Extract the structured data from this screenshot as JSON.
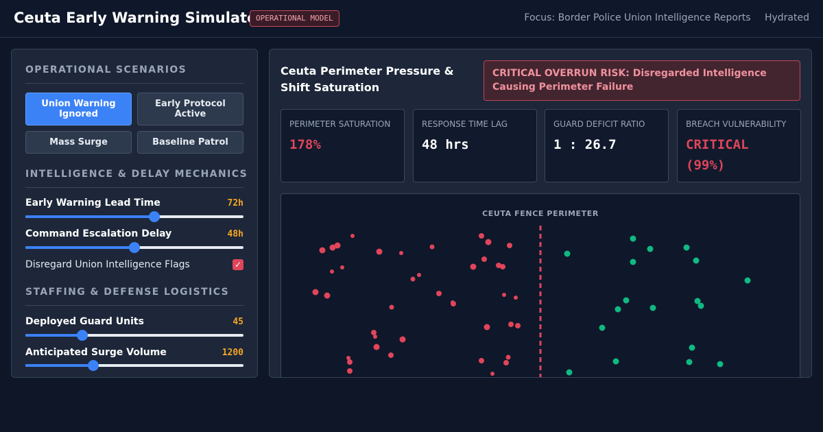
{
  "header": {
    "title": "Ceuta Early Warning Simulator",
    "badge": "OPERATIONAL MODEL",
    "focus": "Focus: Border Police Union Intelligence Reports",
    "status": "Hydrated"
  },
  "scenarios": {
    "title": "OPERATIONAL SCENARIOS",
    "buttons": [
      {
        "label": "Union Warning Ignored",
        "active": true
      },
      {
        "label": "Early Protocol Active",
        "active": false
      },
      {
        "label": "Mass Surge",
        "active": false
      },
      {
        "label": "Baseline Patrol",
        "active": false
      }
    ]
  },
  "intel": {
    "title": "INTELLIGENCE & DELAY MECHANICS",
    "lead_time": {
      "label": "Early Warning Lead Time",
      "value": "72h",
      "fraction": 0.59
    },
    "escalation": {
      "label": "Command Escalation Delay",
      "value": "48h",
      "fraction": 0.5
    },
    "disregard": {
      "label": "Disregard Union Intelligence Flags",
      "checked": true
    }
  },
  "staffing": {
    "title": "STAFFING & DEFENSE LOGISTICS",
    "guards": {
      "label": "Deployed Guard Units",
      "value": "45",
      "fraction": 0.26
    },
    "surge": {
      "label": "Anticipated Surge Volume",
      "value": "1200",
      "fraction": 0.31
    }
  },
  "main": {
    "title": "Ceuta Perimeter Pressure & Shift Saturation",
    "alert": "CRITICAL OVERRUN RISK: Disregarded Intelligence Causing Perimeter Failure",
    "metrics": [
      {
        "label": "PERIMETER SATURATION",
        "value": "178%",
        "color": "#e0455a"
      },
      {
        "label": "RESPONSE TIME LAG",
        "value": "48 hrs",
        "color": "#ffffff"
      },
      {
        "label": "GUARD DEFICIT RATIO",
        "value": "1 : 26.7",
        "color": "#ffffff"
      },
      {
        "label": "BREACH VULNERABILITY",
        "value": "CRITICAL (99%)",
        "color": "#e0455a"
      }
    ],
    "perimeter_label": "CEUTA FENCE PERIMETER"
  },
  "colors": {
    "accent": "#3b82f6",
    "danger": "#e0455a",
    "safe": "#10b981",
    "warning": "#f5a524"
  }
}
